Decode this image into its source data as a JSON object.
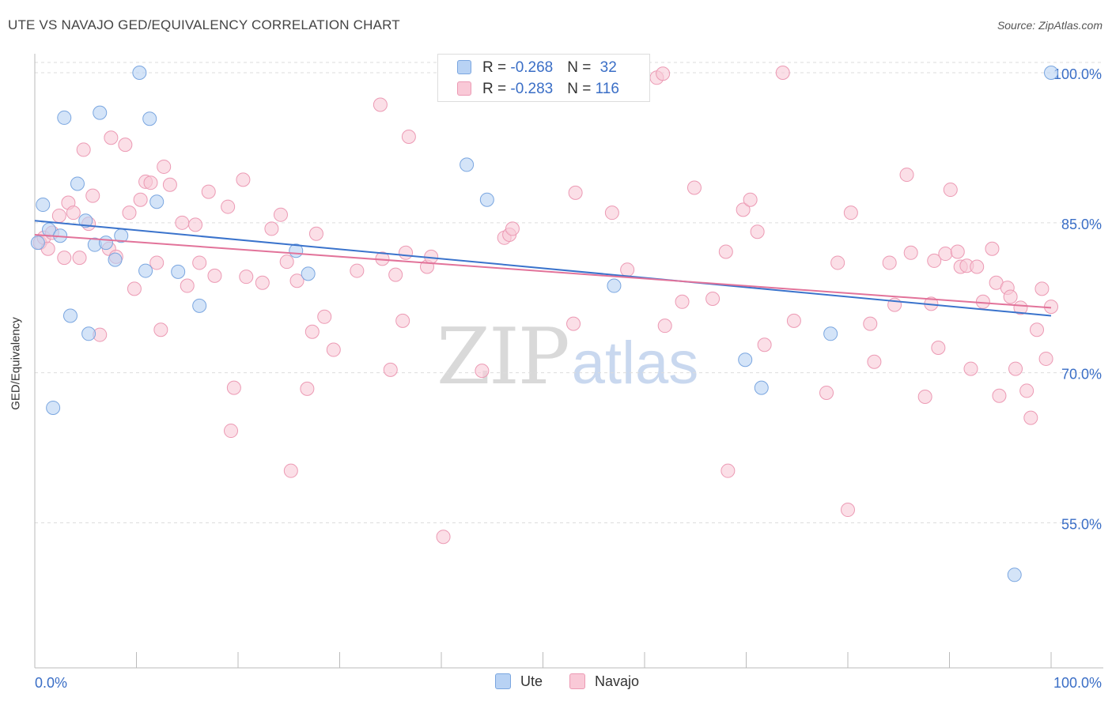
{
  "title": "UTE VS NAVAJO GED/EQUIVALENCY CORRELATION CHART",
  "source": "Source: ZipAtlas.com",
  "watermark": {
    "zip": "ZIP",
    "atlas": "atlas"
  },
  "legend": {
    "rows": [
      {
        "series": "Ute",
        "r_label": "R = ",
        "r_value": "-0.268",
        "n_label": "N = ",
        "n_value": "32"
      },
      {
        "series": "Navajo",
        "r_label": "R = ",
        "r_value": "-0.283",
        "n_label": "N = ",
        "n_value": "116"
      }
    ]
  },
  "colors": {
    "ute_fill": "#b8d2f4",
    "ute_stroke": "#7aa6e0",
    "ute_line": "#3a73cc",
    "navajo_fill": "#f9c9d7",
    "navajo_stroke": "#ec9ab4",
    "navajo_line": "#e2739a",
    "tick_label": "#3a6ec6",
    "grid": "#dddddd"
  },
  "chart_data": {
    "type": "scatter",
    "title": "UTE VS NAVAJO GED/EQUIVALENCY CORRELATION CHART",
    "ylabel": "GED/Equivalency",
    "xlabel": "",
    "xlim": [
      0,
      100
    ],
    "ylim": [
      40.5,
      101.5
    ],
    "x_tick_labels": [
      "0.0%",
      "100.0%"
    ],
    "y_ticks": [
      {
        "value": 100,
        "label": "100.0%"
      },
      {
        "value": 85,
        "label": "85.0%"
      },
      {
        "value": 70,
        "label": "70.0%"
      },
      {
        "value": 55,
        "label": "55.0%"
      }
    ],
    "grid": true,
    "legend_position": "bottom",
    "series": [
      {
        "name": "Ute",
        "trend": {
          "x": [
            0,
            100
          ],
          "y": [
            85.2,
            75.7
          ]
        },
        "points": [
          [
            0.3,
            83
          ],
          [
            0.8,
            86.8
          ],
          [
            1.4,
            84.3
          ],
          [
            1.8,
            66.5
          ],
          [
            2.5,
            83.7
          ],
          [
            2.9,
            95.5
          ],
          [
            3.5,
            75.7
          ],
          [
            4.2,
            88.9
          ],
          [
            5.0,
            85.2
          ],
          [
            5.3,
            73.9
          ],
          [
            5.9,
            82.8
          ],
          [
            6.4,
            96
          ],
          [
            7.0,
            83
          ],
          [
            7.9,
            81.3
          ],
          [
            8.5,
            83.7
          ],
          [
            10.3,
            100
          ],
          [
            10.9,
            80.2
          ],
          [
            11.3,
            95.4
          ],
          [
            12.0,
            87.1
          ],
          [
            14.1,
            80.1
          ],
          [
            16.2,
            76.7
          ],
          [
            25.7,
            82.2
          ],
          [
            26.9,
            79.9
          ],
          [
            42.5,
            90.8
          ],
          [
            44.5,
            87.3
          ],
          [
            55.5,
            100
          ],
          [
            57.0,
            78.7
          ],
          [
            69.9,
            71.3
          ],
          [
            71.5,
            68.5
          ],
          [
            78.3,
            73.9
          ],
          [
            96.4,
            49.8
          ],
          [
            100,
            100
          ]
        ]
      },
      {
        "name": "Navajo",
        "trend": {
          "x": [
            0,
            100
          ],
          "y": [
            83.8,
            76.5
          ]
        },
        "points": [
          [
            0.5,
            83
          ],
          [
            0.9,
            83.5
          ],
          [
            1.3,
            82.4
          ],
          [
            1.7,
            84
          ],
          [
            2.4,
            85.7
          ],
          [
            2.9,
            81.5
          ],
          [
            3.3,
            87
          ],
          [
            3.8,
            86
          ],
          [
            4.4,
            81.5
          ],
          [
            4.8,
            92.3
          ],
          [
            5.3,
            84.9
          ],
          [
            5.7,
            87.7
          ],
          [
            6.4,
            73.8
          ],
          [
            7.3,
            82.4
          ],
          [
            7.5,
            93.5
          ],
          [
            8.0,
            81.6
          ],
          [
            8.9,
            92.8
          ],
          [
            9.3,
            86
          ],
          [
            9.8,
            78.4
          ],
          [
            10.4,
            87.3
          ],
          [
            10.9,
            89.1
          ],
          [
            11.4,
            89.0
          ],
          [
            12.0,
            81
          ],
          [
            12.4,
            74.3
          ],
          [
            12.7,
            90.6
          ],
          [
            13.3,
            88.8
          ],
          [
            14.5,
            85
          ],
          [
            15.0,
            78.7
          ],
          [
            15.8,
            84.8
          ],
          [
            16.2,
            81
          ],
          [
            17.1,
            88.1
          ],
          [
            17.7,
            79.7
          ],
          [
            19.0,
            86.6
          ],
          [
            19.3,
            64.2
          ],
          [
            19.6,
            68.5
          ],
          [
            20.5,
            89.3
          ],
          [
            20.8,
            79.6
          ],
          [
            22.4,
            79
          ],
          [
            23.3,
            84.4
          ],
          [
            24.2,
            85.8
          ],
          [
            24.8,
            81.1
          ],
          [
            25.2,
            60.2
          ],
          [
            25.8,
            79.2
          ],
          [
            26.8,
            68.4
          ],
          [
            27.3,
            74.1
          ],
          [
            27.7,
            83.9
          ],
          [
            28.5,
            75.6
          ],
          [
            29.4,
            72.3
          ],
          [
            31.7,
            80.2
          ],
          [
            34.0,
            96.8
          ],
          [
            34.2,
            81.4
          ],
          [
            35.0,
            70.3
          ],
          [
            35.5,
            79.8
          ],
          [
            36.2,
            75.2
          ],
          [
            36.5,
            82.0
          ],
          [
            36.8,
            93.6
          ],
          [
            38.6,
            80.6
          ],
          [
            39.0,
            81.6
          ],
          [
            40.2,
            53.6
          ],
          [
            44.0,
            70.2
          ],
          [
            46.2,
            83.5
          ],
          [
            46.7,
            83.8
          ],
          [
            47.0,
            84.4
          ],
          [
            52.5,
            100
          ],
          [
            53.0,
            74.9
          ],
          [
            53.2,
            88
          ],
          [
            56.8,
            86
          ],
          [
            58.3,
            80.3
          ],
          [
            61.2,
            99.5
          ],
          [
            61.8,
            99.9
          ],
          [
            62.0,
            74.7
          ],
          [
            63.7,
            77.1
          ],
          [
            64.9,
            88.5
          ],
          [
            66.7,
            77.4
          ],
          [
            68.0,
            82.1
          ],
          [
            68.2,
            60.2
          ],
          [
            69.7,
            86.3
          ],
          [
            70.4,
            87.3
          ],
          [
            71.1,
            84.1
          ],
          [
            71.8,
            72.8
          ],
          [
            73.6,
            100
          ],
          [
            74.7,
            75.2
          ],
          [
            77.9,
            68
          ],
          [
            79.0,
            81.0
          ],
          [
            80.0,
            56.3
          ],
          [
            80.3,
            86
          ],
          [
            82.2,
            74.9
          ],
          [
            82.6,
            71.1
          ],
          [
            84.1,
            81
          ],
          [
            84.6,
            76.8
          ],
          [
            85.8,
            89.8
          ],
          [
            86.2,
            82.0
          ],
          [
            87.6,
            67.6
          ],
          [
            88.2,
            76.9
          ],
          [
            88.5,
            81.2
          ],
          [
            88.9,
            72.5
          ],
          [
            89.6,
            81.9
          ],
          [
            90.1,
            88.3
          ],
          [
            90.8,
            82.1
          ],
          [
            91.1,
            80.6
          ],
          [
            91.7,
            80.7
          ],
          [
            92.1,
            70.4
          ],
          [
            92.7,
            80.6
          ],
          [
            93.3,
            77.1
          ],
          [
            94.2,
            82.4
          ],
          [
            94.6,
            79
          ],
          [
            94.9,
            67.7
          ],
          [
            95.7,
            78.5
          ],
          [
            96.0,
            77.6
          ],
          [
            96.5,
            70.4
          ],
          [
            97.0,
            76.5
          ],
          [
            97.6,
            68.2
          ],
          [
            98.0,
            65.5
          ],
          [
            98.6,
            74.3
          ],
          [
            99.1,
            78.4
          ],
          [
            99.5,
            71.4
          ],
          [
            100,
            76.6
          ]
        ]
      }
    ]
  }
}
